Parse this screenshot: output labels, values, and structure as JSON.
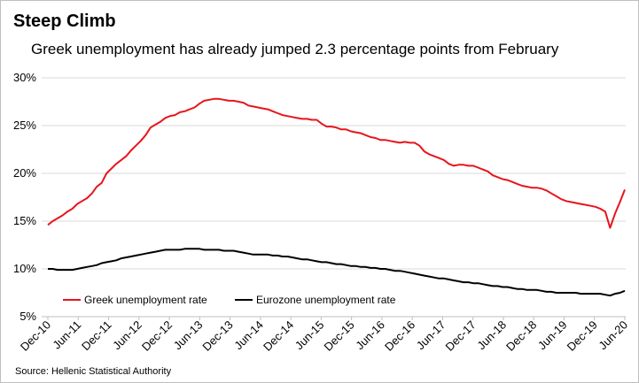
{
  "title": "Steep Climb",
  "subtitle": "Greek unemployment has already jumped 2.3 percentage points from February",
  "source": "Source: Hellenic Statistical Authority",
  "chart_data": {
    "type": "line",
    "ylim": [
      5,
      30
    ],
    "yticks": [
      "5%",
      "10%",
      "15%",
      "20%",
      "25%",
      "30%"
    ],
    "ytick_values": [
      5,
      10,
      15,
      20,
      25,
      30
    ],
    "x_tick_labels": [
      "Dec-10",
      "Jun-11",
      "Dec-11",
      "Jun-12",
      "Dec-12",
      "Jun-13",
      "Dec-13",
      "Jun-14",
      "Dec-14",
      "Jun-15",
      "Dec-15",
      "Jun-16",
      "Dec-16",
      "Jun-17",
      "Dec-17",
      "Jun-18",
      "Dec-18",
      "Jun-19",
      "Dec-19",
      "Jun-20"
    ],
    "x_start": "Dec-10",
    "x_end": "Jun-20",
    "grid": "horizontal",
    "legend_position": "bottom-left",
    "series": [
      {
        "name": "Greek unemployment rate",
        "color": "#e8141b",
        "values": [
          14.6,
          15.0,
          15.3,
          15.6,
          16.0,
          16.3,
          16.8,
          17.1,
          17.4,
          17.9,
          18.6,
          19.0,
          20.0,
          20.5,
          21.0,
          21.4,
          21.8,
          22.4,
          22.9,
          23.4,
          24.0,
          24.8,
          25.1,
          25.4,
          25.8,
          26.0,
          26.1,
          26.4,
          26.5,
          26.7,
          26.9,
          27.3,
          27.6,
          27.7,
          27.8,
          27.8,
          27.7,
          27.6,
          27.6,
          27.5,
          27.4,
          27.1,
          27.0,
          26.9,
          26.8,
          26.7,
          26.5,
          26.3,
          26.1,
          26.0,
          25.9,
          25.8,
          25.7,
          25.7,
          25.6,
          25.6,
          25.2,
          24.9,
          24.9,
          24.8,
          24.6,
          24.6,
          24.4,
          24.3,
          24.2,
          24.0,
          23.8,
          23.7,
          23.5,
          23.5,
          23.4,
          23.3,
          23.2,
          23.3,
          23.2,
          23.2,
          22.9,
          22.3,
          22.0,
          21.8,
          21.6,
          21.4,
          21.0,
          20.8,
          20.9,
          20.9,
          20.8,
          20.8,
          20.6,
          20.4,
          20.2,
          19.8,
          19.6,
          19.4,
          19.3,
          19.1,
          18.9,
          18.7,
          18.6,
          18.5,
          18.5,
          18.4,
          18.2,
          17.9,
          17.6,
          17.3,
          17.1,
          17.0,
          16.9,
          16.8,
          16.7,
          16.6,
          16.5,
          16.3,
          16.0,
          14.3,
          15.8,
          17.0,
          18.3
        ]
      },
      {
        "name": "Eurozone unemployment rate",
        "color": "#000000",
        "values": [
          10.0,
          10.0,
          9.9,
          9.9,
          9.9,
          9.9,
          10.0,
          10.1,
          10.2,
          10.3,
          10.4,
          10.6,
          10.7,
          10.8,
          10.9,
          11.1,
          11.2,
          11.3,
          11.4,
          11.5,
          11.6,
          11.7,
          11.8,
          11.9,
          12.0,
          12.0,
          12.0,
          12.0,
          12.1,
          12.1,
          12.1,
          12.1,
          12.0,
          12.0,
          12.0,
          12.0,
          11.9,
          11.9,
          11.9,
          11.8,
          11.7,
          11.6,
          11.5,
          11.5,
          11.5,
          11.5,
          11.4,
          11.4,
          11.3,
          11.3,
          11.2,
          11.1,
          11.0,
          11.0,
          10.9,
          10.8,
          10.7,
          10.7,
          10.6,
          10.5,
          10.5,
          10.4,
          10.3,
          10.3,
          10.2,
          10.2,
          10.1,
          10.1,
          10.0,
          10.0,
          9.9,
          9.8,
          9.8,
          9.7,
          9.6,
          9.5,
          9.4,
          9.3,
          9.2,
          9.1,
          9.0,
          9.0,
          8.9,
          8.8,
          8.7,
          8.6,
          8.6,
          8.5,
          8.5,
          8.4,
          8.3,
          8.2,
          8.2,
          8.1,
          8.1,
          8.0,
          7.9,
          7.9,
          7.8,
          7.8,
          7.8,
          7.7,
          7.6,
          7.6,
          7.5,
          7.5,
          7.5,
          7.5,
          7.5,
          7.4,
          7.4,
          7.4,
          7.4,
          7.4,
          7.3,
          7.2,
          7.4,
          7.5,
          7.7
        ]
      }
    ]
  }
}
